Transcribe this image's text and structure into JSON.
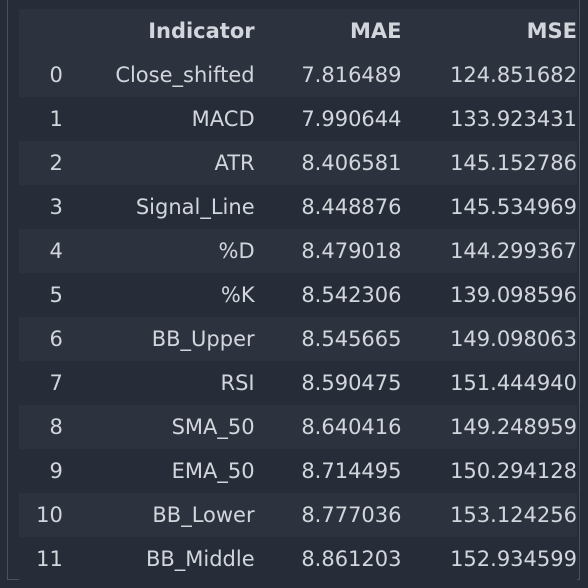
{
  "table": {
    "headers": {
      "index": "",
      "indicator": "Indicator",
      "mae": "MAE",
      "mse": "MSE"
    },
    "rows": [
      {
        "index": "0",
        "indicator": "Close_shifted",
        "mae": "7.816489",
        "mse": "124.851682"
      },
      {
        "index": "1",
        "indicator": "MACD",
        "mae": "7.990644",
        "mse": "133.923431"
      },
      {
        "index": "2",
        "indicator": "ATR",
        "mae": "8.406581",
        "mse": "145.152786"
      },
      {
        "index": "3",
        "indicator": "Signal_Line",
        "mae": "8.448876",
        "mse": "145.534969"
      },
      {
        "index": "4",
        "indicator": "%D",
        "mae": "8.479018",
        "mse": "144.299367"
      },
      {
        "index": "5",
        "indicator": "%K",
        "mae": "8.542306",
        "mse": "139.098596"
      },
      {
        "index": "6",
        "indicator": "BB_Upper",
        "mae": "8.545665",
        "mse": "149.098063"
      },
      {
        "index": "7",
        "indicator": "RSI",
        "mae": "8.590475",
        "mse": "151.444940"
      },
      {
        "index": "8",
        "indicator": "SMA_50",
        "mae": "8.640416",
        "mse": "149.248959"
      },
      {
        "index": "9",
        "indicator": "EMA_50",
        "mae": "8.714495",
        "mse": "150.294128"
      },
      {
        "index": "10",
        "indicator": "BB_Lower",
        "mae": "8.777036",
        "mse": "153.124256"
      },
      {
        "index": "11",
        "indicator": "BB_Middle",
        "mae": "8.861203",
        "mse": "152.934599"
      }
    ]
  },
  "colors": {
    "background": "#272d38",
    "row_stripe": "#2d333e",
    "text": "#d2d6dc",
    "border": "#4a505c"
  }
}
